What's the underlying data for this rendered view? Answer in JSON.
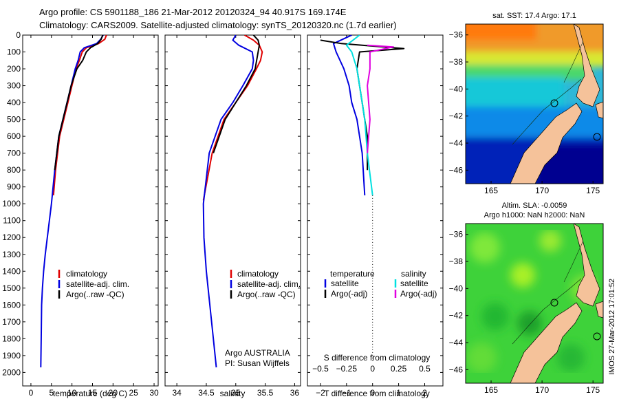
{
  "title": {
    "line1": "Argo profile: CS 5901188_186 21-Mar-2012 20120324_94 40.917S 169.174E",
    "line2": "Climatology: CARS2009. Satellite-adjusted climatology: synTS_20120320.nc (1.7d earlier)"
  },
  "colors": {
    "climatology": "#e00000",
    "satellite": "#0000e0",
    "argo": "#000000",
    "sat_salinity": "#00e0e0",
    "argo_salinity": "#e000e0",
    "land": "#f5c29a"
  },
  "chart_data": [
    {
      "type": "line",
      "panel": "temperature",
      "xlabel": "temperature (deg C)",
      "ylabel": "",
      "xlim": [
        -2,
        31
      ],
      "ylim": [
        2080,
        0
      ],
      "xticks": [
        0,
        5,
        10,
        15,
        20,
        25,
        30
      ],
      "yticks": [
        0,
        100,
        200,
        300,
        400,
        500,
        600,
        700,
        800,
        900,
        1000,
        1100,
        1200,
        1300,
        1400,
        1500,
        1600,
        1700,
        1800,
        1900,
        2000
      ],
      "legend": [
        "climatology",
        "satellite-adj. clim.",
        "Argo(..raw -QC)"
      ],
      "legend_position": "lower-right",
      "series": [
        {
          "name": "climatology",
          "color": "#e00000",
          "x": [
            18.4,
            18.0,
            16.5,
            13.5,
            12.5,
            11.8,
            11.0,
            10.0,
            9.0,
            8.0,
            7.0,
            6.0,
            5.5
          ],
          "y": [
            0,
            25,
            50,
            75,
            100,
            150,
            200,
            300,
            400,
            500,
            600,
            800,
            950
          ]
        },
        {
          "name": "satellite-adj. clim.",
          "color": "#0000e0",
          "x": [
            17.6,
            17.0,
            16.0,
            13.0,
            12.0,
            11.5,
            10.8,
            9.8,
            8.8,
            7.8,
            6.8,
            5.8,
            5.0,
            4.5,
            4.0,
            3.5,
            3.1,
            2.8,
            2.6,
            2.5,
            2.4
          ],
          "y": [
            0,
            25,
            50,
            75,
            100,
            150,
            200,
            300,
            400,
            500,
            600,
            800,
            1000,
            1100,
            1200,
            1300,
            1400,
            1500,
            1600,
            1800,
            1970
          ]
        },
        {
          "name": "Argo(..raw -QC)",
          "color": "#000000",
          "x": [
            17.5,
            17.1,
            16.3,
            14.5,
            13.5,
            12.6,
            11.2,
            9.8,
            8.8,
            7.8,
            6.8,
            5.8
          ],
          "y": [
            0,
            25,
            50,
            75,
            100,
            150,
            200,
            300,
            400,
            500,
            600,
            800
          ]
        }
      ]
    },
    {
      "type": "line",
      "panel": "salinity",
      "xlabel": "salinity",
      "ylabel": "",
      "xlim": [
        33.8,
        36.1
      ],
      "ylim": [
        2080,
        0
      ],
      "xticks": [
        34,
        34.5,
        35,
        35.5,
        36
      ],
      "legend": [
        "climatology",
        "satellite-adj. clim.",
        "Argo(..raw -QC)"
      ],
      "legend_position": "lower-right",
      "annotation": [
        "Argo AUSTRALIA",
        "PI: Susan Wijffels"
      ],
      "series": [
        {
          "name": "climatology",
          "color": "#e00000",
          "x": [
            35.15,
            35.3,
            35.4,
            35.45,
            35.42,
            35.35,
            35.2,
            35.0,
            34.8,
            34.6,
            34.45
          ],
          "y": [
            0,
            30,
            60,
            100,
            150,
            200,
            300,
            400,
            500,
            700,
            980
          ]
        },
        {
          "name": "satellite-adj. clim.",
          "color": "#0000e0",
          "x": [
            35.0,
            34.95,
            35.05,
            35.28,
            35.3,
            35.28,
            35.12,
            34.95,
            34.75,
            34.55,
            34.45,
            34.46,
            34.5,
            34.56,
            34.62,
            34.67
          ],
          "y": [
            0,
            30,
            60,
            100,
            150,
            200,
            300,
            400,
            500,
            700,
            1000,
            1200,
            1400,
            1600,
            1800,
            1970
          ]
        },
        {
          "name": "Argo(..raw -QC)",
          "color": "#000000",
          "x": [
            35.3,
            35.38,
            35.4,
            35.38,
            35.33,
            35.18,
            35.0,
            34.82,
            34.62
          ],
          "y": [
            0,
            30,
            60,
            100,
            200,
            300,
            400,
            500,
            700
          ]
        }
      ]
    },
    {
      "type": "line",
      "panel": "difference",
      "xlabel": "T difference from climatology",
      "xlabel_top": "S difference from climatology",
      "ylabel": "",
      "xlim": [
        -2.5,
        2.7
      ],
      "ylim": [
        2080,
        0
      ],
      "xticks": [
        -2,
        -1,
        0,
        1,
        2
      ],
      "xticks_s": [
        -0.5,
        -0.25,
        0,
        0.25,
        0.5
      ],
      "xticks_s_at": [
        -2.0,
        -1.0,
        0.0,
        1.0,
        2.0
      ],
      "legend_temperature_title": "temperature",
      "legend_salinity_title": "salinity",
      "legend": [
        "satellite",
        "Argo(-adj)",
        "satellite",
        "Argo(-adj)"
      ],
      "legend_position": "lower-center",
      "series": [
        {
          "name": "satellite",
          "group": "temperature",
          "color": "#0000e0",
          "x": [
            -0.8,
            -1.5,
            -1.4,
            -1.1,
            -0.9,
            -0.8,
            -0.6,
            -0.5,
            -0.4,
            -0.3
          ],
          "y": [
            0,
            50,
            100,
            200,
            300,
            400,
            500,
            600,
            700,
            950
          ]
        },
        {
          "name": "Argo(-adj)",
          "group": "temperature",
          "color": "#000000",
          "x": [
            -2.0,
            -1.2,
            1.2,
            -0.5,
            -0.6,
            -0.5,
            -0.4,
            -0.3,
            -0.2,
            -0.2
          ],
          "y": [
            30,
            50,
            80,
            100,
            200,
            300,
            400,
            500,
            600,
            800
          ]
        },
        {
          "name": "satellite",
          "group": "salinity",
          "color": "#00e0e0",
          "x": [
            -0.5,
            -1.0,
            -0.8,
            -0.6,
            -0.5,
            -0.4,
            -0.3,
            -0.2,
            0.0
          ],
          "y": [
            0,
            60,
            100,
            200,
            300,
            400,
            500,
            700,
            950
          ]
        },
        {
          "name": "Argo(-adj)",
          "group": "salinity",
          "color": "#e000e0",
          "x": [
            -0.2,
            0.8,
            -0.1,
            -0.1,
            -0.2,
            -0.1,
            -0.2
          ],
          "y": [
            60,
            70,
            100,
            200,
            300,
            500,
            700
          ]
        }
      ]
    },
    {
      "type": "heatmap",
      "panel": "sst-map",
      "title": "sat. SST: 17.4  Argo: 17.1",
      "xlim": [
        162.5,
        176
      ],
      "ylim": [
        -47,
        -35.2
      ],
      "xticks": [
        165,
        170,
        175
      ],
      "yticks": [
        -36,
        -38,
        -40,
        -42,
        -44,
        -46
      ],
      "argo_position": {
        "lon": 169.174,
        "lat": -40.917
      }
    },
    {
      "type": "heatmap",
      "panel": "sla-map",
      "title_line1": "Altim. SLA: -0.0059",
      "title_line2": "Argo h1000: NaN h2000: NaN",
      "xlim": [
        162.5,
        176
      ],
      "ylim": [
        -47,
        -35.2
      ],
      "xticks": [
        165,
        170,
        175
      ],
      "yticks": [
        -36,
        -38,
        -40,
        -42,
        -44,
        -46
      ],
      "argo_position": {
        "lon": 169.174,
        "lat": -40.917
      }
    }
  ],
  "side_note": "IMOS 27-Mar-2012 17:01:52"
}
